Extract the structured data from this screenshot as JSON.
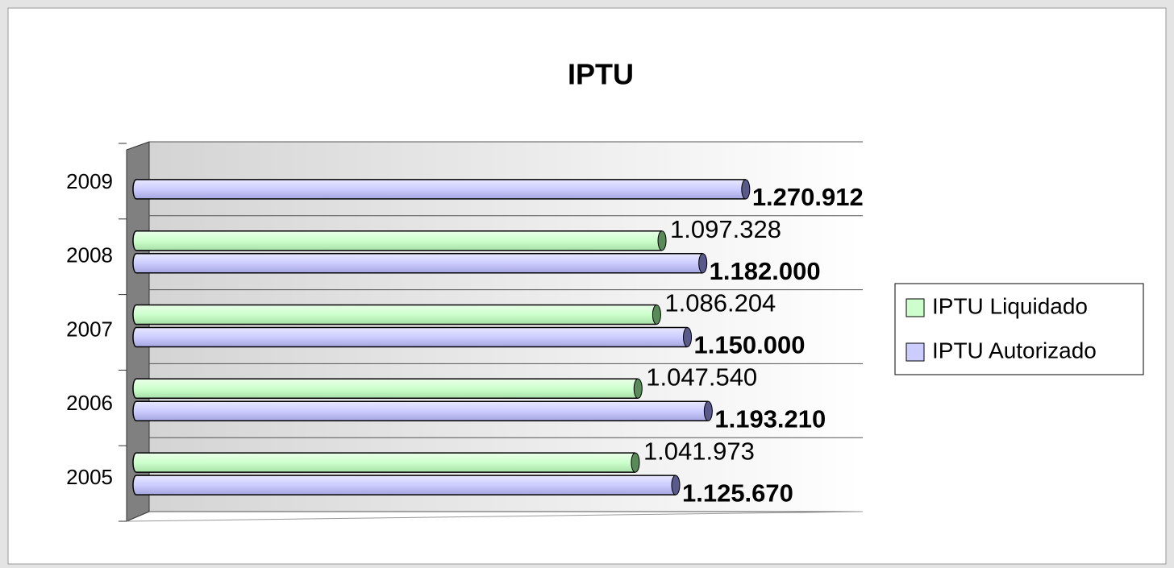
{
  "chart_data": {
    "type": "bar",
    "orientation": "horizontal",
    "title": "IPTU",
    "categories": [
      "2005",
      "2006",
      "2007",
      "2008",
      "2009"
    ],
    "series": [
      {
        "name": "IPTU Liquidado",
        "color": "#ccffcc",
        "values": [
          1041973,
          1047540,
          1086204,
          1097328,
          null
        ],
        "value_labels": [
          "1.041.973",
          "1.047.540",
          "1.086.204",
          "1.097.328",
          null
        ]
      },
      {
        "name": "IPTU Autorizado",
        "color": "#ccccff",
        "values": [
          1125670,
          1193210,
          1150000,
          1182000,
          1270912
        ],
        "value_labels": [
          "1.125.670",
          "1.193.210",
          "1.150.000",
          "1.182.000",
          "1.270.912"
        ]
      }
    ],
    "xlim": [
      0,
      1400000
    ],
    "legend": "right"
  }
}
